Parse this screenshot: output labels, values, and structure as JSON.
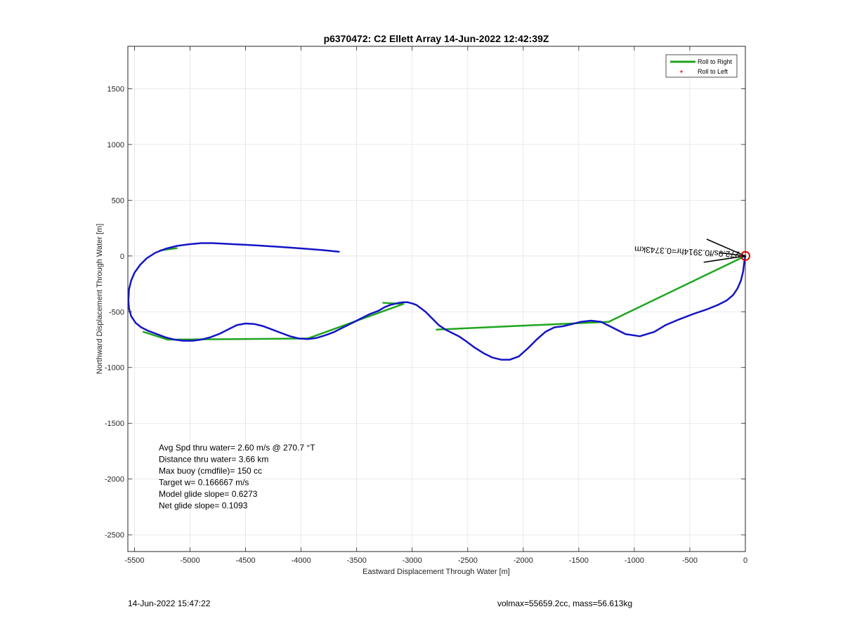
{
  "footer": {
    "left": "14-Jun-2022 15:47:22",
    "right": "volmax=55659.2cc, mass=56.613kg"
  },
  "chart_data": {
    "type": "line",
    "title": "p6370472: C2 Ellett Array 14-Jun-2022 12:42:39Z",
    "xlabel": "Eastward Displacement Through Water [m]",
    "ylabel": "Northward Displacement Through Water [m]",
    "xlim": [
      -5560,
      0
    ],
    "ylim": [
      -2650,
      1880
    ],
    "xticks": [
      -5500,
      -5000,
      -4500,
      -4000,
      -3500,
      -3000,
      -2500,
      -2000,
      -1500,
      -1000,
      -500,
      0
    ],
    "yticks": [
      -2500,
      -2000,
      -1500,
      -1000,
      -500,
      0,
      500,
      1000,
      1500
    ],
    "grid": true,
    "legend": {
      "placement": "top-right",
      "entries": [
        "Roll to Right",
        "Roll to Left"
      ]
    },
    "colors": {
      "track": "#1414c8",
      "roll_right": "#1fa51f",
      "roll_left": "#ff0000",
      "marker": "#dd0000",
      "arrow": "#000000"
    },
    "series": [
      {
        "name": "Roll to Right",
        "style": "segments",
        "segments": [
          [
            [
              0,
              0
            ],
            [
              -1230,
              -590
            ]
          ],
          [
            [
              -1230,
              -590
            ],
            [
              -2780,
              -660
            ]
          ],
          [
            [
              -3080,
              -430
            ],
            [
              -3260,
              -420
            ]
          ],
          [
            [
              -3080,
              -430
            ],
            [
              -3940,
              -740
            ]
          ],
          [
            [
              -3940,
              -740
            ],
            [
              -5200,
              -750
            ]
          ],
          [
            [
              -5200,
              -750
            ],
            [
              -5420,
              -680
            ]
          ],
          [
            [
              -5270,
              50
            ],
            [
              -5120,
              70
            ]
          ]
        ]
      },
      {
        "name": "track",
        "style": "line",
        "x": [
          0,
          -10,
          -20,
          -40,
          -70,
          -110,
          -170,
          -250,
          -350,
          -470,
          -600,
          -720,
          -820,
          -950,
          -1080,
          -1200,
          -1300,
          -1390,
          -1480,
          -1560,
          -1640,
          -1720,
          -1800,
          -1880,
          -1960,
          -2040,
          -2120,
          -2200,
          -2280,
          -2360,
          -2440,
          -2520,
          -2580,
          -2640,
          -2700,
          -2760,
          -2800,
          -2840,
          -2880,
          -2920,
          -2960,
          -3000,
          -3040,
          -3080,
          -3120,
          -3160,
          -3200,
          -3250,
          -3300,
          -3380,
          -3460,
          -3540,
          -3620,
          -3700,
          -3780,
          -3860,
          -3940,
          -4020,
          -4100,
          -4180,
          -4260,
          -4340,
          -4420,
          -4500,
          -4580,
          -4660,
          -4740,
          -4820,
          -4900,
          -4980,
          -5060,
          -5140,
          -5220,
          -5300,
          -5380,
          -5440,
          -5490,
          -5530,
          -5550,
          -5555,
          -5550,
          -5530,
          -5500,
          -5450,
          -5390,
          -5310,
          -5220,
          -5120,
          -5010,
          -4900,
          -4800,
          -4700,
          -4600,
          -4500,
          -4400,
          -4300,
          -4200,
          -4100,
          -4000,
          -3900,
          -3800,
          -3700,
          -3660
        ],
        "y": [
          0,
          -60,
          -140,
          -220,
          -290,
          -350,
          -400,
          -440,
          -480,
          -520,
          -570,
          -620,
          -680,
          -720,
          -700,
          -640,
          -590,
          -580,
          -590,
          -610,
          -630,
          -640,
          -680,
          -750,
          -830,
          -900,
          -930,
          -930,
          -910,
          -870,
          -820,
          -760,
          -720,
          -690,
          -660,
          -620,
          -580,
          -540,
          -500,
          -470,
          -440,
          -425,
          -415,
          -415,
          -420,
          -430,
          -440,
          -460,
          -490,
          -520,
          -560,
          -600,
          -640,
          -680,
          -710,
          -735,
          -745,
          -740,
          -720,
          -690,
          -660,
          -630,
          -610,
          -605,
          -620,
          -660,
          -700,
          -730,
          -750,
          -760,
          -760,
          -750,
          -730,
          -700,
          -670,
          -640,
          -600,
          -540,
          -470,
          -400,
          -300,
          -220,
          -150,
          -80,
          -20,
          30,
          65,
          90,
          105,
          115,
          115,
          110,
          105,
          100,
          95,
          88,
          82,
          75,
          68,
          60,
          52,
          42,
          38
        ]
      }
    ],
    "annotations": {
      "stats": [
        "Avg Spd thru water=  2.60 m/s @ 270.7 °T",
        "Distance thru water=  3.66 km",
        "Max buoy (cmdfile)= 150 cc",
        "Target w= 0.166667 m/s",
        "Model glide slope= 0.6273",
        "Net glide slope= 0.1093"
      ],
      "arrow_label": "272.9s/f0.3914hr=0.3743km",
      "arrow_label_rotation": 183,
      "arrow_x": [
        0,
        -230
      ],
      "arrow_y": [
        0,
        30
      ],
      "marker_xy": [
        0,
        0
      ]
    }
  }
}
